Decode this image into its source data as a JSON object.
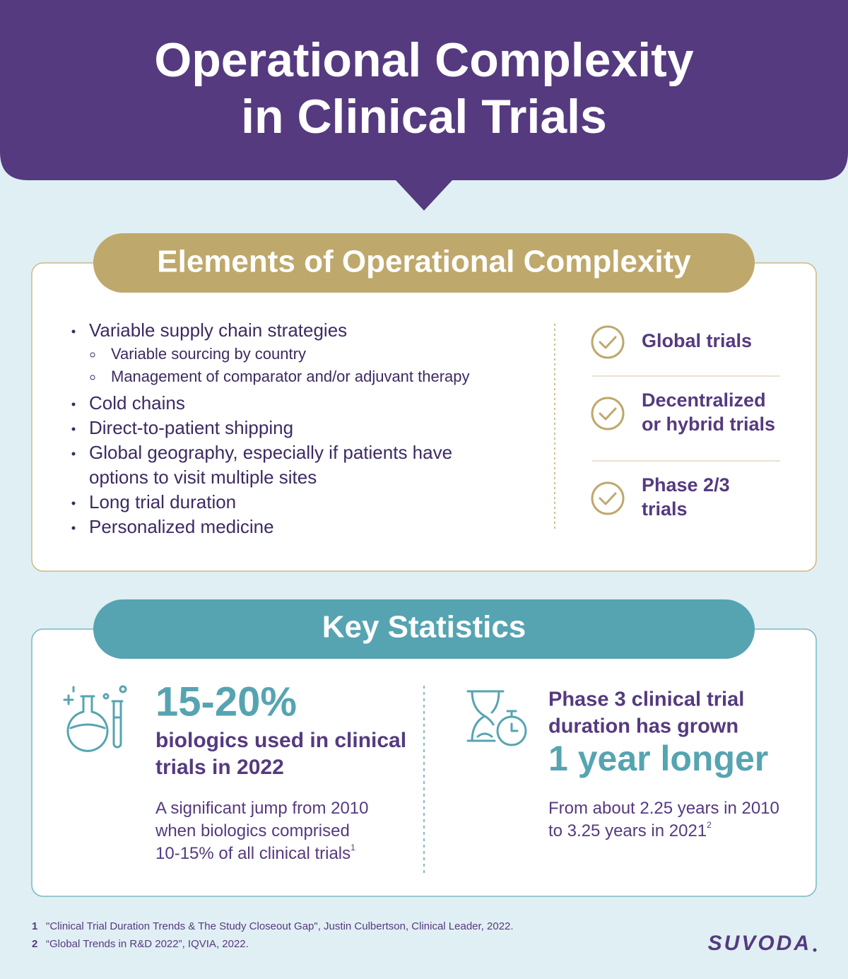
{
  "header": {
    "title": [
      "Operational Complexity",
      "in Clinical Trials"
    ]
  },
  "elements": {
    "heading": "Elements of Operational Complexity",
    "list": [
      {
        "lines": [
          "Variable supply chain strategies"
        ],
        "sub": [
          "Variable sourcing by country",
          "Management of comparator and/or adjuvant therapy"
        ]
      },
      {
        "lines": [
          "Cold chains"
        ]
      },
      {
        "lines": [
          "Direct-to-patient shipping"
        ]
      },
      {
        "lines": [
          "Global geography, especially if patients have",
          "options to visit multiple sites"
        ]
      },
      {
        "lines": [
          "Long trial duration"
        ]
      },
      {
        "lines": [
          "Personalized medicine"
        ]
      }
    ],
    "checks": [
      [
        "Global trials"
      ],
      [
        "Decentralized",
        "or hybrid trials"
      ],
      [
        "Phase 2/3",
        "trials"
      ]
    ]
  },
  "stats": {
    "heading": "Key Statistics",
    "left": {
      "figure": "15-20%",
      "label": [
        "biologics used in clinical",
        "trials in 2022"
      ],
      "body": [
        "A significant jump from 2010",
        "when biologics comprised",
        "10-15% of all clinical trials"
      ],
      "note": "1"
    },
    "right": {
      "label": [
        "Phase 3 clinical trial",
        "duration has grown"
      ],
      "figure": "1 year longer",
      "body": [
        "From about 2.25 years in 2010",
        "to 3.25 years in 2021"
      ],
      "note": "2"
    }
  },
  "footnotes": [
    {
      "number": "1",
      "text": "\"Clinical Trial Duration Trends & The Study Closeout Gap\", Justin Culbertson, Clinical Leader, 2022."
    },
    {
      "number": "2",
      "text": "“Global Trends in R&D 2022”, IQVIA, 2022."
    }
  ],
  "logo": "SUVODA"
}
